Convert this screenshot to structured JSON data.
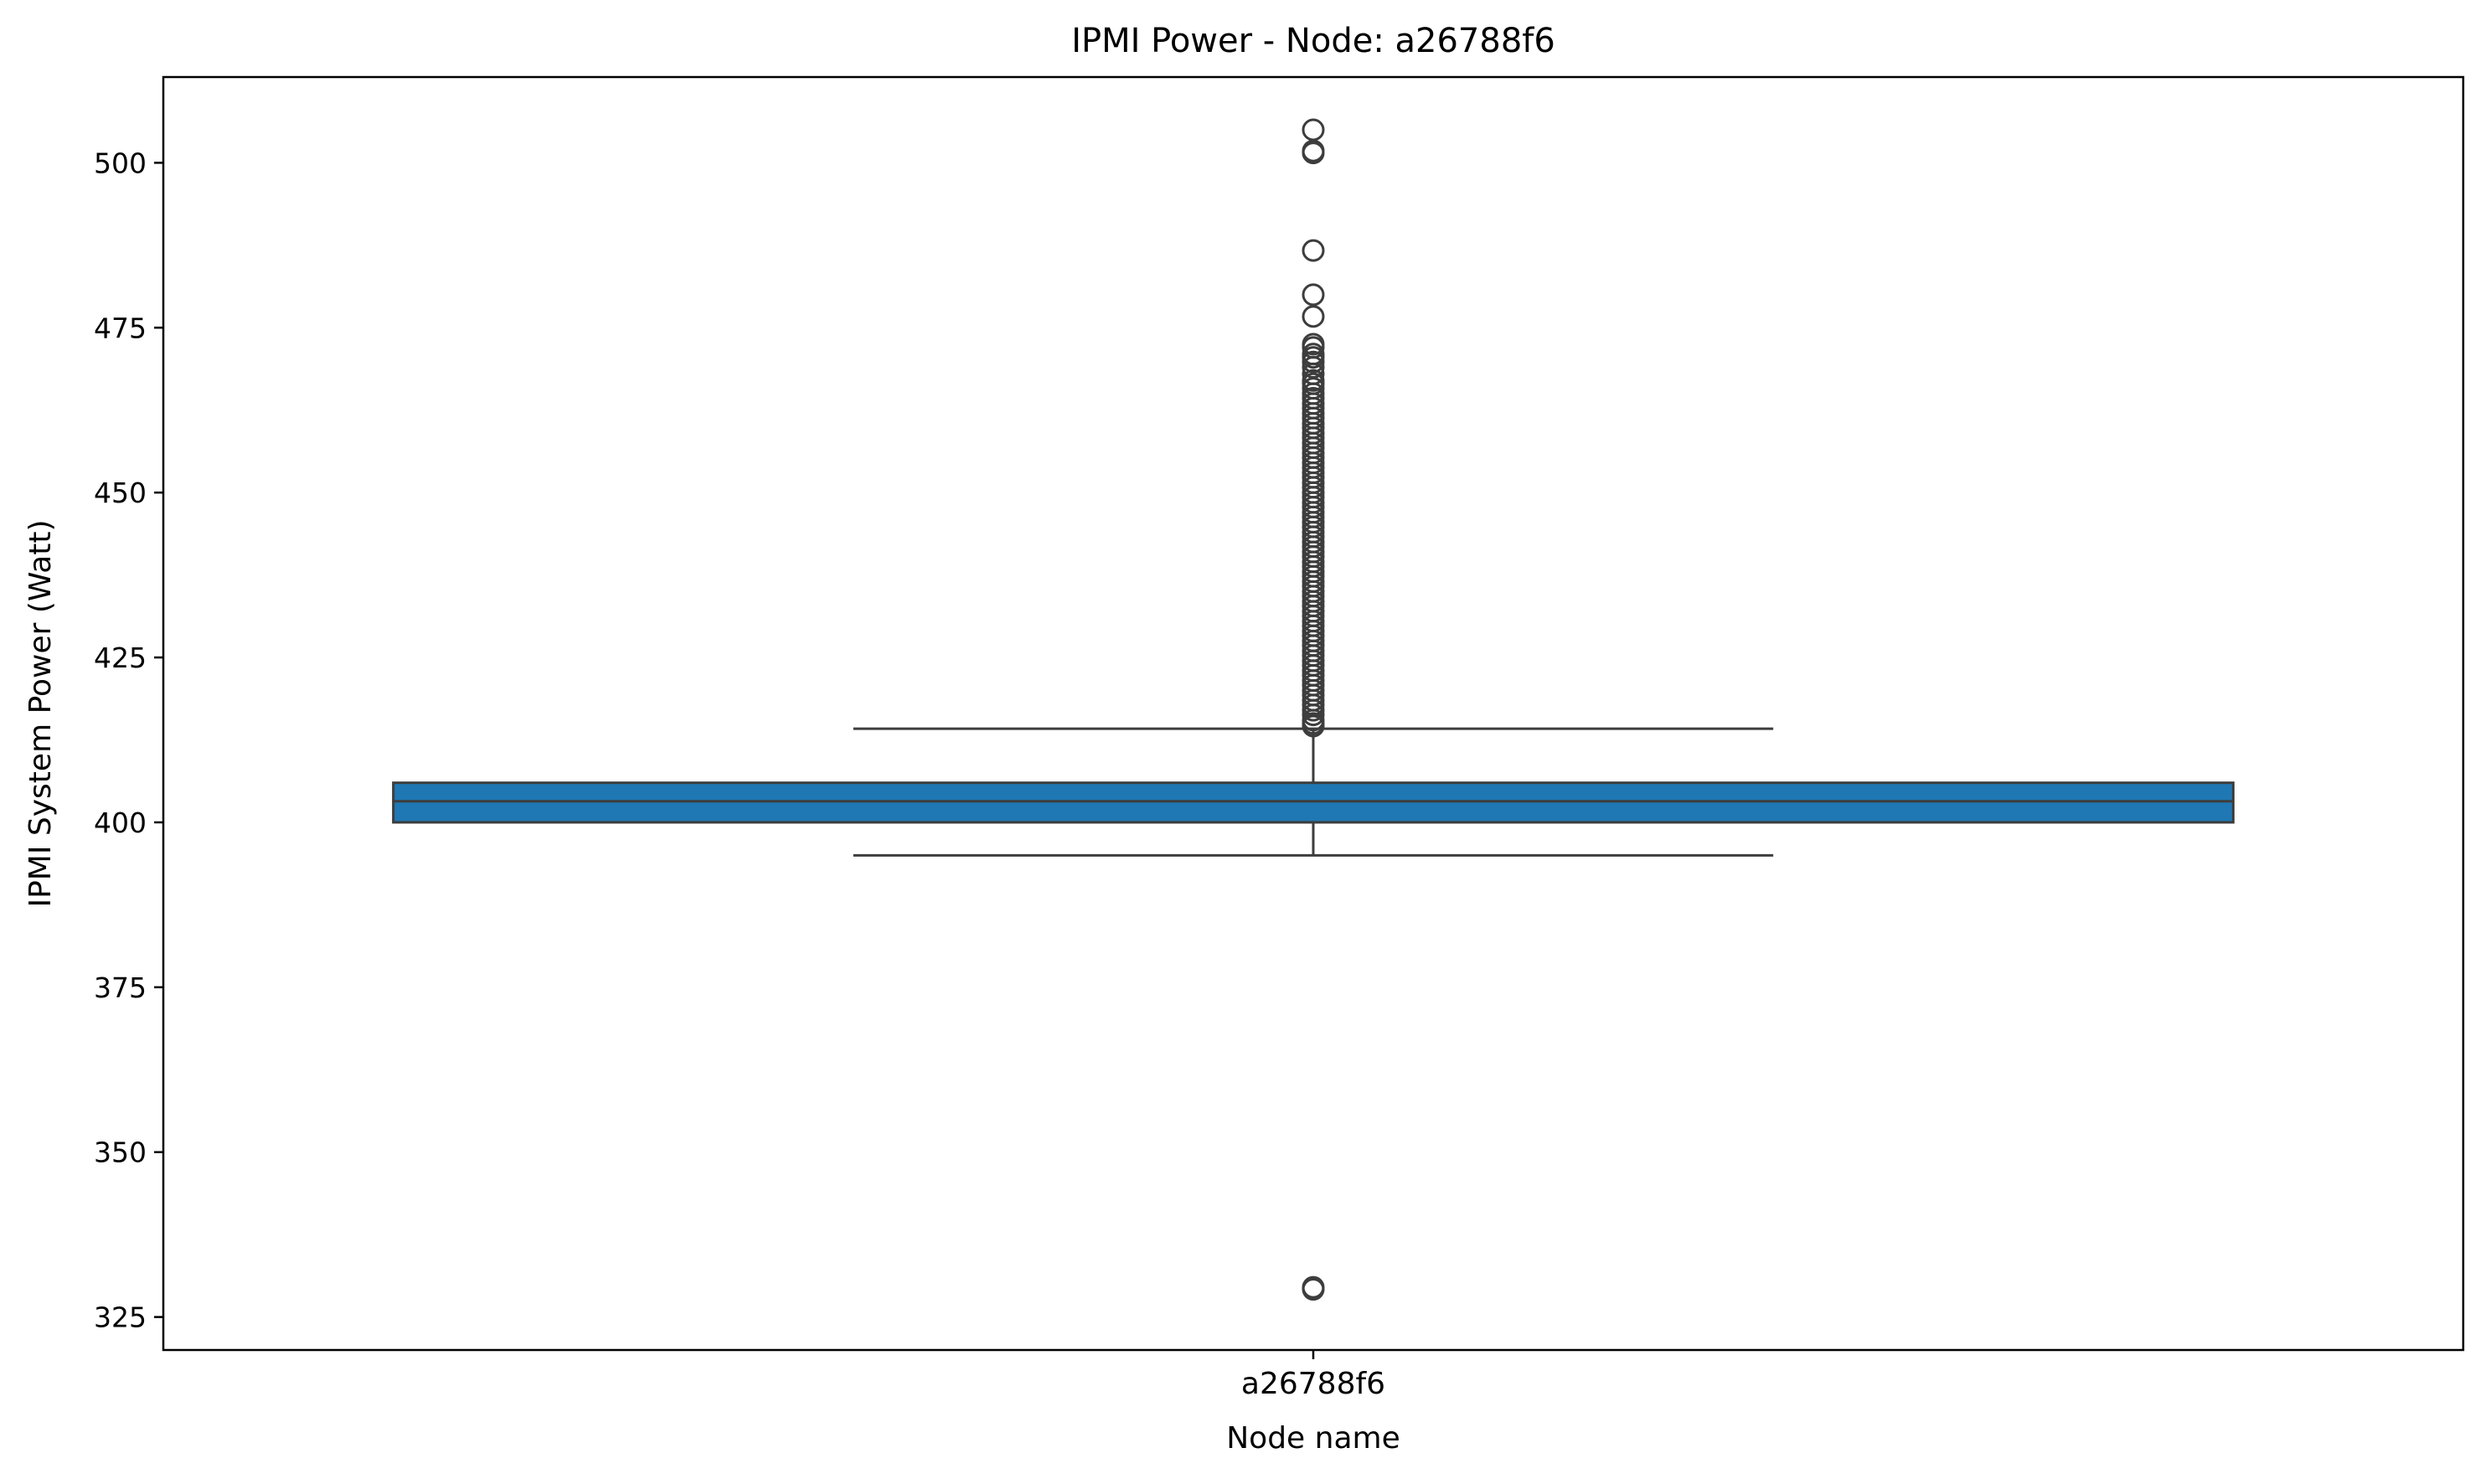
{
  "chart_data": {
    "type": "box",
    "title": "IPMI Power - Node: a26788f6",
    "xlabel": "Node name",
    "ylabel": "IPMI System Power (Watt)",
    "categories": [
      "a26788f6"
    ],
    "ylim": [
      320,
      513
    ],
    "yticks": [
      325,
      350,
      375,
      400,
      425,
      450,
      475,
      500
    ],
    "grid": false,
    "legend": "none",
    "box_color": "#1f77b4",
    "line_color": "#3d3d3d",
    "boxes": [
      {
        "category": "a26788f6",
        "q1": 400.0,
        "median": 403.2,
        "q3": 406.0,
        "whisker_low": 395.0,
        "whisker_high": 414.2,
        "outliers": [
          505.0,
          501.8,
          501.5,
          486.7,
          480.0,
          476.7,
          472.5,
          472.0,
          471.0,
          470.5,
          469.8,
          469.0,
          468.0,
          467.0,
          466.5,
          465.8,
          465.0,
          464.3,
          463.5,
          462.8,
          462.0,
          461.3,
          460.5,
          459.8,
          459.0,
          458.3,
          457.5,
          456.8,
          456.0,
          455.3,
          454.5,
          453.8,
          453.0,
          452.3,
          451.5,
          450.8,
          450.0,
          449.3,
          448.5,
          447.8,
          447.0,
          446.3,
          445.5,
          444.8,
          444.0,
          443.3,
          442.5,
          441.8,
          441.0,
          440.3,
          439.5,
          438.8,
          438.0,
          437.3,
          436.5,
          435.8,
          435.0,
          434.3,
          433.5,
          432.8,
          432.0,
          431.3,
          430.5,
          429.8,
          429.0,
          428.3,
          427.5,
          426.8,
          426.0,
          425.3,
          424.5,
          423.8,
          423.0,
          422.3,
          421.5,
          420.8,
          420.0,
          419.3,
          418.5,
          417.8,
          417.0,
          416.3,
          415.5,
          415.0,
          414.6,
          329.5,
          329.2
        ]
      }
    ]
  }
}
